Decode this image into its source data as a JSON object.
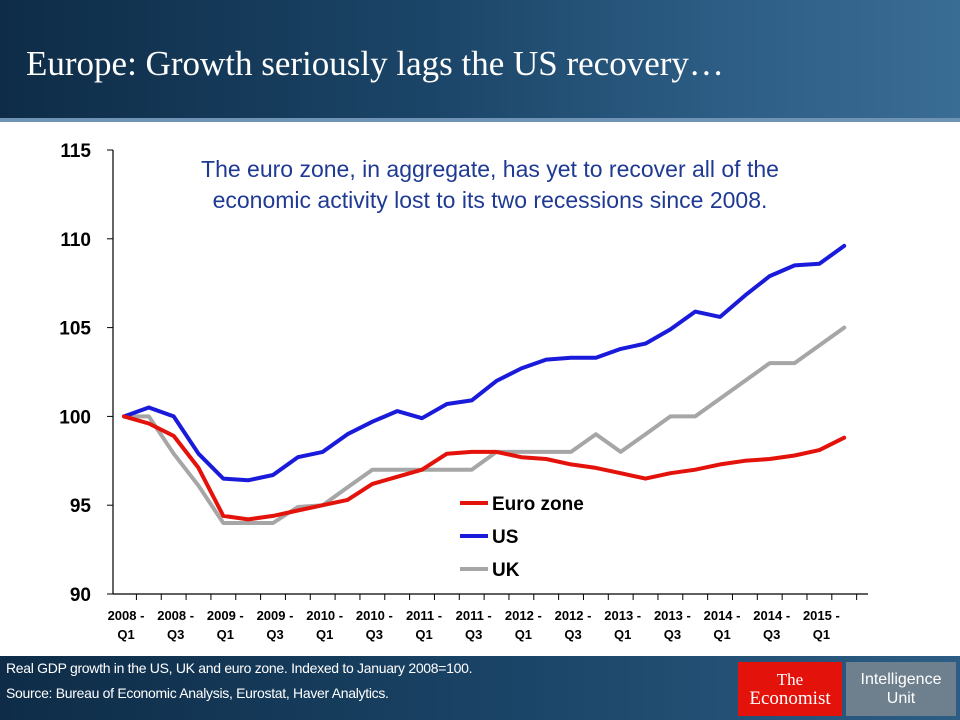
{
  "page": {
    "title": "Europe: Growth seriously lags the US recovery…",
    "footer_note": "Real GDP growth in the US, UK and euro zone. Indexed to January 2008=100.",
    "footer_source": "Source: Bureau of Economic Analysis, Eurostat, Haver Analytics.",
    "logo": {
      "economist_line1": "The",
      "economist_line2": "Economist",
      "iu_line1": "Intelligence",
      "iu_line2": "Unit"
    }
  },
  "colors": {
    "euro_zone": "#e3120b",
    "us": "#1a1adb",
    "uk": "#a6a6a6",
    "annotation": "#1f3a93"
  },
  "chart_data": {
    "type": "line",
    "annotation_lines": [
      "The euro zone, in aggregate, has yet to recover all of the",
      "economic activity lost to its two recessions since 2008."
    ],
    "ylim": [
      90,
      115
    ],
    "yticks": [
      90,
      95,
      100,
      105,
      110,
      115
    ],
    "x_tick_labels": [
      [
        "2008 -",
        "Q1"
      ],
      [
        "2008 -",
        "Q3"
      ],
      [
        "2009 -",
        "Q1"
      ],
      [
        "2009 -",
        "Q3"
      ],
      [
        "2010 -",
        "Q1"
      ],
      [
        "2010 -",
        "Q3"
      ],
      [
        "2011 -",
        "Q1"
      ],
      [
        "2011 -",
        "Q3"
      ],
      [
        "2012 -",
        "Q1"
      ],
      [
        "2012 -",
        "Q3"
      ],
      [
        "2013 -",
        "Q1"
      ],
      [
        "2013 -",
        "Q3"
      ],
      [
        "2014 -",
        "Q1"
      ],
      [
        "2014 -",
        "Q3"
      ],
      [
        "2015 -",
        "Q1"
      ]
    ],
    "x": [
      "2008 Q1",
      "2008 Q2",
      "2008 Q3",
      "2008 Q4",
      "2009 Q1",
      "2009 Q2",
      "2009 Q3",
      "2009 Q4",
      "2010 Q1",
      "2010 Q2",
      "2010 Q3",
      "2010 Q4",
      "2011 Q1",
      "2011 Q2",
      "2011 Q3",
      "2011 Q4",
      "2012 Q1",
      "2012 Q2",
      "2012 Q3",
      "2012 Q4",
      "2013 Q1",
      "2013 Q2",
      "2013 Q3",
      "2013 Q4",
      "2014 Q1",
      "2014 Q2",
      "2014 Q3",
      "2014 Q4",
      "2015 Q1",
      "2015 Q2"
    ],
    "grid": false,
    "legend_position": "center",
    "series": [
      {
        "name": "Euro zone",
        "color_key": "euro_zone",
        "values": [
          100.0,
          99.6,
          98.9,
          97.1,
          94.4,
          94.2,
          94.4,
          94.7,
          95.0,
          95.3,
          96.2,
          96.6,
          97.0,
          97.9,
          98.0,
          98.0,
          97.7,
          97.6,
          97.3,
          97.1,
          96.8,
          96.5,
          96.8,
          97.0,
          97.3,
          97.5,
          97.6,
          97.8,
          98.1,
          98.8
        ]
      },
      {
        "name": "US",
        "color_key": "us",
        "values": [
          100.0,
          100.5,
          100.0,
          97.9,
          96.5,
          96.4,
          96.7,
          97.7,
          98.0,
          99.0,
          99.7,
          100.3,
          99.9,
          100.7,
          100.9,
          102.0,
          102.7,
          103.2,
          103.3,
          103.3,
          103.8,
          104.1,
          104.9,
          105.9,
          105.6,
          106.8,
          107.9,
          108.5,
          108.6,
          109.6
        ]
      },
      {
        "name": "UK",
        "color_key": "uk",
        "values": [
          100.0,
          100.0,
          97.9,
          96.1,
          94.0,
          94.0,
          94.0,
          94.9,
          95.0,
          96.0,
          97.0,
          97.0,
          97.0,
          97.0,
          97.0,
          98.0,
          98.0,
          98.0,
          98.0,
          99.0,
          98.0,
          99.0,
          100.0,
          100.0,
          101.0,
          102.0,
          103.0,
          103.0,
          104.0,
          105.0
        ]
      }
    ]
  }
}
